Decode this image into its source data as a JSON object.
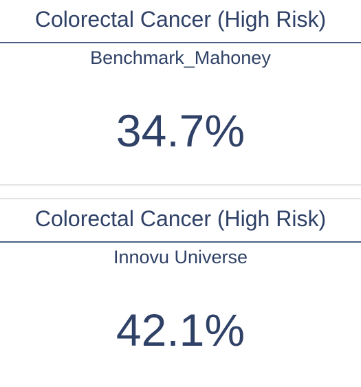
{
  "cards": [
    {
      "title": "Colorectal Cancer (High Risk)",
      "subtitle": "Benchmark_Mahoney",
      "value": "34.7%"
    },
    {
      "title": "Colorectal Cancer (High Risk)",
      "subtitle": "Innovu Universe",
      "value": "42.1%"
    }
  ],
  "colors": {
    "text": "#2f4166",
    "rule": "#4a5f86",
    "separator": "#e4e4e4",
    "background": "#ffffff"
  }
}
